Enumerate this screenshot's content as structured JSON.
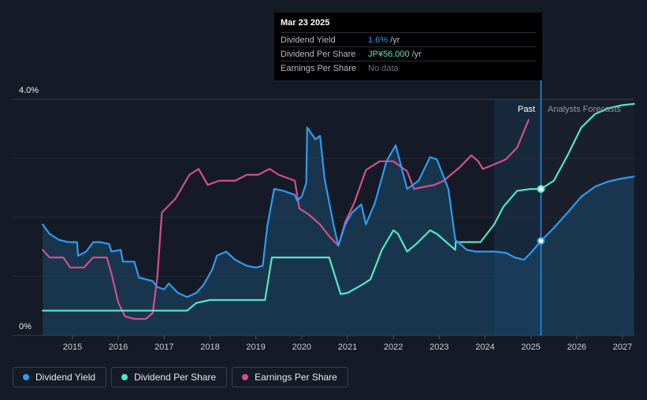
{
  "tooltip": {
    "date": "Mar 23 2025",
    "rows": [
      {
        "name": "Dividend Yield",
        "value": "1.6%",
        "unit": "/yr"
      },
      {
        "name": "Dividend Per Share",
        "value": "JP¥56.000",
        "unit": "/yr"
      },
      {
        "name": "Earnings Per Share",
        "value": "No data",
        "unit": ""
      }
    ]
  },
  "labels": {
    "past": "Past",
    "forecast": "Analysts Forecasts"
  },
  "legend": [
    {
      "label": "Dividend Yield",
      "color": "#2e9bf0"
    },
    {
      "label": "Dividend Per Share",
      "color": "#55e6c6"
    },
    {
      "label": "Earnings Per Share",
      "color": "#d34f8f"
    }
  ],
  "chart_data": {
    "type": "line",
    "title": "",
    "xlabel": "",
    "ylabel": "",
    "x_ticks": [
      "2015",
      "2016",
      "2017",
      "2018",
      "2019",
      "2020",
      "2021",
      "2022",
      "2023",
      "2024",
      "2025",
      "2026",
      "2027"
    ],
    "y_ticks": [
      "0%",
      "4.0%"
    ],
    "ylim": [
      0,
      4.0
    ],
    "xlim": [
      2014.2,
      2027.25
    ],
    "forecast_start": 2024.2,
    "current": 2025.22,
    "grid": true,
    "legend_position": "bottom-left",
    "series": [
      {
        "name": "Dividend Yield",
        "color": "#2e9bf0",
        "unit": "%",
        "points": [
          [
            2014.35,
            1.88
          ],
          [
            2014.5,
            1.72
          ],
          [
            2014.7,
            1.62
          ],
          [
            2014.9,
            1.58
          ],
          [
            2015.1,
            1.58
          ],
          [
            2015.12,
            1.35
          ],
          [
            2015.3,
            1.42
          ],
          [
            2015.45,
            1.58
          ],
          [
            2015.6,
            1.58
          ],
          [
            2015.8,
            1.55
          ],
          [
            2015.85,
            1.42
          ],
          [
            2016.05,
            1.45
          ],
          [
            2016.1,
            1.25
          ],
          [
            2016.35,
            1.25
          ],
          [
            2016.45,
            0.98
          ],
          [
            2016.75,
            0.92
          ],
          [
            2016.85,
            0.82
          ],
          [
            2017.0,
            0.78
          ],
          [
            2017.1,
            0.88
          ],
          [
            2017.3,
            0.72
          ],
          [
            2017.5,
            0.65
          ],
          [
            2017.7,
            0.72
          ],
          [
            2017.85,
            0.85
          ],
          [
            2017.95,
            0.98
          ],
          [
            2018.05,
            1.12
          ],
          [
            2018.15,
            1.35
          ],
          [
            2018.35,
            1.42
          ],
          [
            2018.55,
            1.28
          ],
          [
            2018.8,
            1.18
          ],
          [
            2019.0,
            1.15
          ],
          [
            2019.15,
            1.18
          ],
          [
            2019.25,
            1.85
          ],
          [
            2019.4,
            2.48
          ],
          [
            2019.6,
            2.45
          ],
          [
            2019.85,
            2.38
          ],
          [
            2019.9,
            2.28
          ],
          [
            2020.0,
            2.35
          ],
          [
            2020.1,
            2.58
          ],
          [
            2020.12,
            3.52
          ],
          [
            2020.3,
            3.32
          ],
          [
            2020.4,
            3.38
          ],
          [
            2020.5,
            2.65
          ],
          [
            2020.7,
            1.85
          ],
          [
            2020.8,
            1.52
          ],
          [
            2020.95,
            1.88
          ],
          [
            2021.1,
            2.08
          ],
          [
            2021.3,
            2.22
          ],
          [
            2021.4,
            1.88
          ],
          [
            2021.6,
            2.25
          ],
          [
            2021.85,
            2.95
          ],
          [
            2022.05,
            3.22
          ],
          [
            2022.3,
            2.48
          ],
          [
            2022.55,
            2.62
          ],
          [
            2022.8,
            3.02
          ],
          [
            2022.95,
            2.98
          ],
          [
            2023.2,
            2.48
          ],
          [
            2023.35,
            1.62
          ],
          [
            2023.6,
            1.45
          ],
          [
            2023.8,
            1.42
          ],
          [
            2024.2,
            1.42
          ],
          [
            2024.45,
            1.4
          ],
          [
            2024.65,
            1.32
          ],
          [
            2024.85,
            1.28
          ],
          [
            2025.0,
            1.4
          ],
          [
            2025.22,
            1.6
          ],
          [
            2025.5,
            1.82
          ],
          [
            2025.8,
            2.08
          ],
          [
            2026.1,
            2.35
          ],
          [
            2026.4,
            2.52
          ],
          [
            2026.7,
            2.61
          ],
          [
            2027.0,
            2.66
          ],
          [
            2027.25,
            2.69
          ]
        ]
      },
      {
        "name": "Dividend Per Share",
        "color": "#55e6c6",
        "unit": "JP¥",
        "points": [
          [
            2014.35,
            0.42
          ],
          [
            2015.0,
            0.42
          ],
          [
            2016.0,
            0.42
          ],
          [
            2017.0,
            0.42
          ],
          [
            2017.5,
            0.42
          ],
          [
            2017.7,
            0.55
          ],
          [
            2018.0,
            0.6
          ],
          [
            2018.6,
            0.6
          ],
          [
            2019.2,
            0.6
          ],
          [
            2019.35,
            1.32
          ],
          [
            2019.8,
            1.32
          ],
          [
            2020.3,
            1.32
          ],
          [
            2020.6,
            1.32
          ],
          [
            2020.85,
            0.7
          ],
          [
            2021.0,
            0.72
          ],
          [
            2021.3,
            0.85
          ],
          [
            2021.5,
            0.95
          ],
          [
            2021.75,
            1.45
          ],
          [
            2022.0,
            1.78
          ],
          [
            2022.1,
            1.72
          ],
          [
            2022.3,
            1.42
          ],
          [
            2022.5,
            1.55
          ],
          [
            2022.8,
            1.78
          ],
          [
            2022.95,
            1.72
          ],
          [
            2023.2,
            1.55
          ],
          [
            2023.35,
            1.45
          ],
          [
            2023.36,
            1.58
          ],
          [
            2023.9,
            1.58
          ],
          [
            2024.2,
            1.88
          ],
          [
            2024.4,
            2.18
          ],
          [
            2024.7,
            2.45
          ],
          [
            2025.0,
            2.48
          ],
          [
            2025.22,
            2.48
          ],
          [
            2025.5,
            2.62
          ],
          [
            2025.8,
            3.05
          ],
          [
            2026.1,
            3.52
          ],
          [
            2026.4,
            3.75
          ],
          [
            2026.7,
            3.85
          ],
          [
            2027.0,
            3.9
          ],
          [
            2027.25,
            3.92
          ]
        ]
      },
      {
        "name": "Earnings Per Share",
        "color": "#d34f8f",
        "unit": "JP¥",
        "points": [
          [
            2014.35,
            1.45
          ],
          [
            2014.5,
            1.32
          ],
          [
            2014.8,
            1.32
          ],
          [
            2014.95,
            1.15
          ],
          [
            2015.25,
            1.15
          ],
          [
            2015.45,
            1.32
          ],
          [
            2015.75,
            1.32
          ],
          [
            2015.85,
            1.05
          ],
          [
            2016.0,
            0.55
          ],
          [
            2016.15,
            0.32
          ],
          [
            2016.35,
            0.28
          ],
          [
            2016.6,
            0.28
          ],
          [
            2016.75,
            0.38
          ],
          [
            2016.85,
            0.98
          ],
          [
            2016.95,
            2.08
          ],
          [
            2017.25,
            2.32
          ],
          [
            2017.55,
            2.72
          ],
          [
            2017.75,
            2.82
          ],
          [
            2017.95,
            2.55
          ],
          [
            2018.2,
            2.62
          ],
          [
            2018.55,
            2.62
          ],
          [
            2018.8,
            2.72
          ],
          [
            2019.05,
            2.72
          ],
          [
            2019.3,
            2.82
          ],
          [
            2019.5,
            2.72
          ],
          [
            2019.85,
            2.62
          ],
          [
            2019.95,
            2.15
          ],
          [
            2020.15,
            2.05
          ],
          [
            2020.4,
            1.88
          ],
          [
            2020.6,
            1.68
          ],
          [
            2020.8,
            1.52
          ],
          [
            2020.95,
            1.92
          ],
          [
            2021.15,
            2.25
          ],
          [
            2021.4,
            2.8
          ],
          [
            2021.7,
            2.95
          ],
          [
            2022.0,
            2.95
          ],
          [
            2022.3,
            2.78
          ],
          [
            2022.45,
            2.48
          ],
          [
            2022.7,
            2.52
          ],
          [
            2022.9,
            2.55
          ],
          [
            2023.1,
            2.62
          ],
          [
            2023.45,
            2.85
          ],
          [
            2023.7,
            3.05
          ],
          [
            2023.85,
            2.95
          ],
          [
            2023.95,
            2.82
          ],
          [
            2024.15,
            2.88
          ],
          [
            2024.45,
            2.98
          ],
          [
            2024.7,
            3.18
          ],
          [
            2024.95,
            3.65
          ]
        ]
      }
    ]
  }
}
